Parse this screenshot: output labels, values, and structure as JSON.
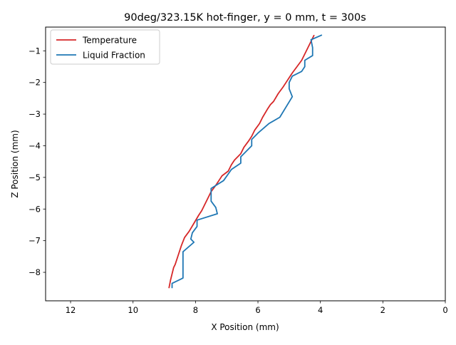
{
  "chart_data": {
    "type": "line",
    "title": "90deg/323.15K hot-finger, y = 0 mm, t = 300s",
    "xlabel": "X Position (mm)",
    "ylabel": "Z Position (mm)",
    "xlim": [
      12.8,
      0
    ],
    "ylim": [
      -8.9,
      -0.25
    ],
    "x_inverted": true,
    "xticks": [
      12,
      10,
      8,
      6,
      4,
      2,
      0
    ],
    "yticks": [
      -8,
      -7,
      -6,
      -5,
      -4,
      -3,
      -2,
      -1
    ],
    "xtick_labels": [
      "12",
      "10",
      "8",
      "6",
      "4",
      "2",
      "0"
    ],
    "ytick_labels": [
      "−8",
      "−7",
      "−6",
      "−5",
      "−4",
      "−3",
      "−2",
      "−1"
    ],
    "grid": false,
    "legend_position": "upper-left",
    "series": [
      {
        "name": "Temperature",
        "color": "#d62728",
        "x": [
          8.85,
          8.8,
          8.75,
          8.7,
          8.65,
          8.55,
          8.45,
          8.35,
          8.2,
          8.05,
          7.9,
          7.8,
          7.7,
          7.6,
          7.5,
          7.35,
          7.25,
          7.15,
          6.95,
          6.85,
          6.75,
          6.55,
          6.45,
          6.3,
          6.2,
          6.1,
          5.95,
          5.85,
          5.7,
          5.6,
          5.5,
          5.35,
          5.2,
          5.1,
          5.0,
          4.9,
          4.75,
          4.6,
          4.5,
          4.4,
          4.3,
          4.2
        ],
        "y": [
          -8.5,
          -8.25,
          -8.05,
          -7.85,
          -7.75,
          -7.45,
          -7.15,
          -6.9,
          -6.7,
          -6.45,
          -6.2,
          -6.05,
          -5.85,
          -5.65,
          -5.45,
          -5.25,
          -5.1,
          -4.95,
          -4.8,
          -4.6,
          -4.45,
          -4.25,
          -4.05,
          -3.85,
          -3.7,
          -3.5,
          -3.3,
          -3.1,
          -2.85,
          -2.7,
          -2.6,
          -2.35,
          -2.15,
          -2.0,
          -1.85,
          -1.7,
          -1.5,
          -1.3,
          -1.1,
          -0.9,
          -0.7,
          -0.5
        ]
      },
      {
        "name": "Liquid Fraction",
        "color": "#1f77b4",
        "x": [
          8.75,
          8.75,
          8.4,
          8.4,
          8.4,
          8.05,
          8.15,
          8.1,
          7.95,
          7.95,
          7.3,
          7.35,
          7.5,
          7.5,
          7.5,
          7.1,
          6.85,
          6.55,
          6.55,
          6.2,
          6.2,
          6.0,
          5.65,
          5.3,
          4.9,
          5.0,
          5.0,
          4.9,
          4.6,
          4.5,
          4.5,
          4.25,
          4.25,
          4.3,
          3.95
        ],
        "y": [
          -8.5,
          -8.35,
          -8.18,
          -7.8,
          -7.35,
          -7.05,
          -6.95,
          -6.75,
          -6.55,
          -6.35,
          -6.15,
          -5.95,
          -5.75,
          -5.55,
          -5.35,
          -5.1,
          -4.75,
          -4.55,
          -4.35,
          -4.0,
          -3.8,
          -3.6,
          -3.3,
          -3.1,
          -2.45,
          -2.2,
          -2.0,
          -1.8,
          -1.65,
          -1.5,
          -1.3,
          -1.15,
          -0.9,
          -0.65,
          -0.5
        ]
      }
    ]
  }
}
